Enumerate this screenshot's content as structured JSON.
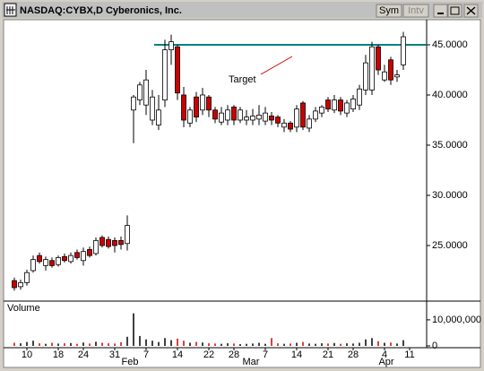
{
  "window": {
    "title": "NASDAQ:CYBX,D Cyberonics, Inc.",
    "buttons": [
      "Sym",
      "Intv"
    ]
  },
  "chart_data": [
    {
      "type": "candlestick",
      "categories": [
        null,
        null,
        "10",
        null,
        null,
        null,
        null,
        "18",
        null,
        null,
        null,
        "24",
        null,
        null,
        null,
        null,
        "31",
        null,
        null,
        null,
        null,
        "7",
        null,
        null,
        null,
        null,
        "14",
        null,
        null,
        null,
        null,
        "22",
        null,
        null,
        null,
        "28",
        null,
        null,
        null,
        null,
        "7",
        null,
        null,
        null,
        null,
        "14",
        null,
        null,
        null,
        null,
        "21",
        null,
        null,
        null,
        "28",
        null,
        null,
        null,
        null,
        "4",
        null,
        null,
        null,
        "11"
      ],
      "months": [
        "Feb",
        "Mar",
        "Apr"
      ],
      "open": [
        21.5,
        20.9,
        21.3,
        22.5,
        24.0,
        23.0,
        23.5,
        23.1,
        23.9,
        23.4,
        24.3,
        23.5,
        24.6,
        24.2,
        25.8,
        25.6,
        25.5,
        25.5,
        25.2,
        38.5,
        39.5,
        39.0,
        37.5,
        37.0,
        39.5,
        44.5,
        44.8,
        40.0,
        37.2,
        39.8,
        38.5,
        39.8,
        38.5,
        37.3,
        37.5,
        38.8,
        37.5,
        37.5,
        37.5,
        37.6,
        37.4,
        37.9,
        37.8,
        36.8,
        37.2,
        36.8,
        39.2,
        36.7,
        37.6,
        38.2,
        39.5,
        38.5,
        39.5,
        38.2,
        38.6,
        39.0,
        40.5,
        40.5,
        44.8,
        41.5,
        43.5,
        41.8,
        43.0,
        null
      ],
      "high": [
        21.8,
        21.6,
        22.6,
        24.0,
        24.3,
        23.9,
        23.8,
        24.0,
        24.2,
        24.3,
        24.6,
        24.8,
        24.9,
        25.8,
        26.0,
        25.9,
        25.8,
        25.9,
        28.0,
        40.0,
        41.3,
        42.5,
        40.5,
        40.0,
        45.5,
        46.0,
        45.0,
        40.8,
        38.8,
        40.3,
        40.7,
        40.0,
        38.8,
        38.8,
        39.0,
        39.0,
        38.8,
        38.5,
        38.6,
        39.0,
        38.8,
        38.3,
        38.0,
        37.6,
        37.4,
        39.0,
        39.4,
        38.0,
        38.8,
        39.0,
        39.8,
        40.0,
        39.8,
        39.5,
        40.0,
        41.0,
        44.0,
        45.3,
        45.0,
        43.0,
        43.8,
        42.5,
        46.3,
        null
      ],
      "low": [
        20.5,
        20.6,
        21.0,
        22.3,
        23.2,
        22.5,
        22.8,
        22.9,
        23.3,
        23.2,
        23.6,
        23.0,
        23.8,
        24.0,
        24.8,
        24.7,
        24.3,
        24.6,
        24.5,
        35.2,
        39.0,
        38.0,
        37.0,
        36.5,
        38.8,
        43.0,
        39.5,
        36.8,
        36.8,
        37.3,
        38.0,
        37.8,
        37.2,
        37.0,
        37.0,
        37.0,
        37.2,
        37.0,
        37.0,
        37.0,
        37.0,
        37.0,
        36.8,
        36.3,
        36.3,
        36.3,
        36.5,
        36.3,
        37.3,
        37.8,
        38.3,
        38.2,
        38.0,
        37.8,
        38.3,
        38.5,
        40.0,
        40.0,
        42.0,
        41.3,
        41.0,
        41.3,
        42.5,
        null
      ],
      "close": [
        20.8,
        21.3,
        22.3,
        23.6,
        23.4,
        23.6,
        23.0,
        23.8,
        23.5,
        24.0,
        23.8,
        24.4,
        24.0,
        25.5,
        25.0,
        24.9,
        25.0,
        25.1,
        27.0,
        39.8,
        41.0,
        41.5,
        39.8,
        38.5,
        44.5,
        45.3,
        40.2,
        37.5,
        38.5,
        37.8,
        40.0,
        38.5,
        37.6,
        38.2,
        38.5,
        37.5,
        38.5,
        37.8,
        37.9,
        38.0,
        38.2,
        37.5,
        37.2,
        37.2,
        36.6,
        38.6,
        36.8,
        37.6,
        38.4,
        38.8,
        38.6,
        39.5,
        38.4,
        39.2,
        39.6,
        40.6,
        43.2,
        44.8,
        42.5,
        42.3,
        41.5,
        42.0,
        45.8,
        null
      ],
      "up_color": "#ffffff",
      "down_color": "#cc0000",
      "ylim": [
        19.55,
        47.5
      ],
      "yticks": [
        {
          "value": 25,
          "label": "25.0000"
        },
        {
          "value": 30,
          "label": "30.0000"
        },
        {
          "value": 35,
          "label": "35.0000"
        },
        {
          "value": 40,
          "label": "40.0000"
        },
        {
          "value": 45,
          "label": "45.0000"
        }
      ],
      "target": {
        "label": "Target",
        "value": 45,
        "color": "#008080"
      }
    },
    {
      "type": "bar",
      "title": "Volume",
      "values": [
        1200000,
        1000000,
        1500000,
        2000000,
        1000000,
        800000,
        1200000,
        900000,
        1000000,
        1100000,
        800000,
        1300000,
        900000,
        1600000,
        1200000,
        1000000,
        900000,
        1400000,
        3500000,
        12500000,
        3800000,
        2500000,
        2000000,
        1500000,
        3000000,
        2200000,
        2800000,
        2000000,
        1200000,
        1500000,
        1300000,
        1000000,
        900000,
        800000,
        1000000,
        900000,
        700000,
        800000,
        900000,
        1200000,
        800000,
        3000000,
        1000000,
        800000,
        900000,
        1200000,
        1500000,
        900000,
        800000,
        1000000,
        900000,
        1100000,
        800000,
        1000000,
        900000,
        1200000,
        2500000,
        3000000,
        1800000,
        1200000,
        1300000,
        900000,
        2200000,
        null
      ],
      "up_color": "#000000",
      "down_color": "#cc0000",
      "ylim": [
        0,
        16500000
      ],
      "yticks": [
        0,
        {
          "value": 10000000,
          "label": "10,000,000"
        }
      ]
    }
  ]
}
